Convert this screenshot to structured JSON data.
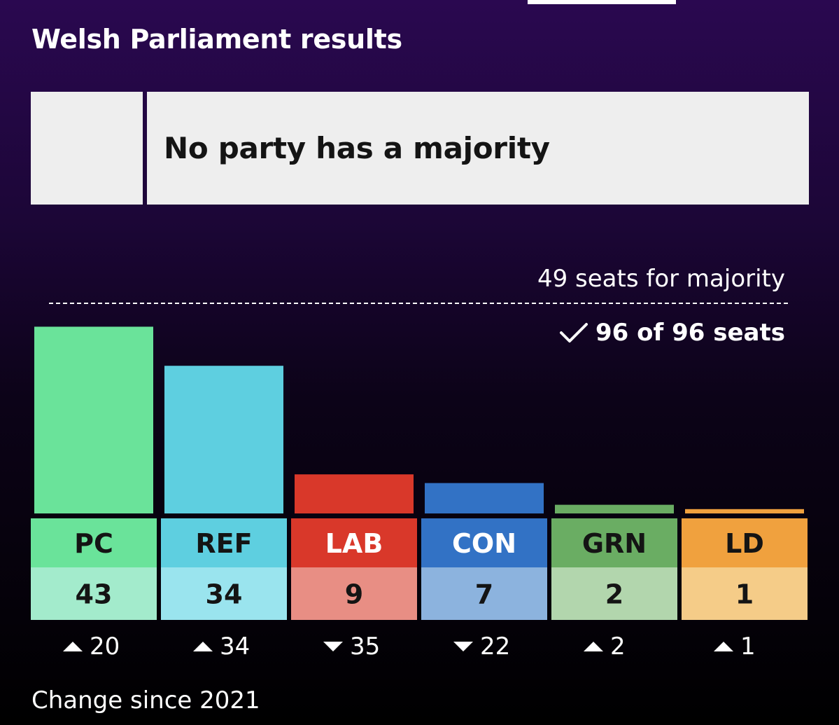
{
  "page": {
    "title": "Welsh Parliament results",
    "status": "No party has a majority",
    "majority_label": "49 seats for majority",
    "seats_declared": "96 of 96 seats",
    "change_label": "Change since 2021"
  },
  "chart_data": {
    "type": "bar",
    "categories": [
      "PC",
      "REF",
      "LAB",
      "CON",
      "GRN",
      "LD"
    ],
    "values": [
      43,
      34,
      9,
      7,
      2,
      1
    ],
    "change": [
      20,
      34,
      -35,
      -22,
      2,
      1
    ],
    "change_labels": [
      "20",
      "34",
      "35",
      "22",
      "2",
      "1"
    ],
    "majority": 49,
    "total_seats": 96,
    "declared_seats": 96,
    "colors": [
      "#6ae39a",
      "#5ecfe0",
      "#d9382a",
      "#3272c5",
      "#6aad63",
      "#f0a13e"
    ],
    "light_colors": [
      "#a3ebcc",
      "#9ae4ee",
      "#e88e84",
      "#8cb3de",
      "#b2d6ad",
      "#f5cc88"
    ],
    "label_text_colors": [
      "#141414",
      "#141414",
      "#ffffff",
      "#ffffff",
      "#141414",
      "#141414"
    ]
  }
}
